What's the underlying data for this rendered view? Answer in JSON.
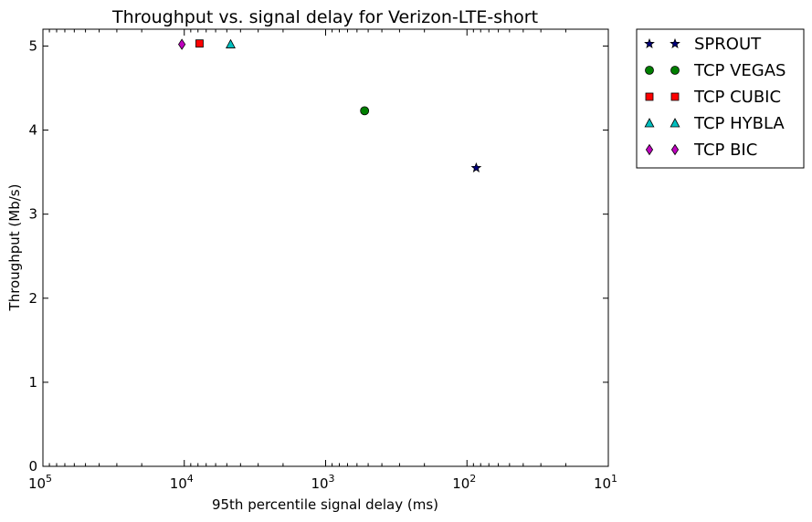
{
  "chart_data": {
    "type": "scatter",
    "title": "Throughput vs. signal delay for Verizon-LTE-short",
    "xlabel": "95th percentile signal delay (ms)",
    "ylabel": "Throughput (Mb/s)",
    "x_scale": "log",
    "x_inverted": true,
    "xlim": [
      100000,
      10
    ],
    "ylim": [
      0,
      5.2
    ],
    "x_ticks": [
      {
        "value": 100000,
        "base": "10",
        "exp": "5"
      },
      {
        "value": 10000,
        "base": "10",
        "exp": "4"
      },
      {
        "value": 1000,
        "base": "10",
        "exp": "3"
      },
      {
        "value": 100,
        "base": "10",
        "exp": "2"
      },
      {
        "value": 10,
        "base": "10",
        "exp": "1"
      }
    ],
    "y_ticks": [
      "0",
      "1",
      "2",
      "3",
      "4",
      "5"
    ],
    "grid": false,
    "legend_position": "outside-top-right",
    "series": [
      {
        "name": "SPROUT",
        "marker": "star",
        "color": "#00007f",
        "x": [
          86
        ],
        "y": [
          3.55
        ]
      },
      {
        "name": "TCP VEGAS",
        "marker": "circle",
        "color": "#007f00",
        "x": [
          530
        ],
        "y": [
          4.23
        ]
      },
      {
        "name": "TCP CUBIC",
        "marker": "square",
        "color": "#ff0000",
        "x": [
          7800
        ],
        "y": [
          5.03
        ]
      },
      {
        "name": "TCP HYBLA",
        "marker": "triangle",
        "color": "#00bfbf",
        "x": [
          4700
        ],
        "y": [
          5.02
        ]
      },
      {
        "name": "TCP BIC",
        "marker": "diamond",
        "color": "#bf00bf",
        "x": [
          10400
        ],
        "y": [
          5.02
        ]
      }
    ]
  }
}
